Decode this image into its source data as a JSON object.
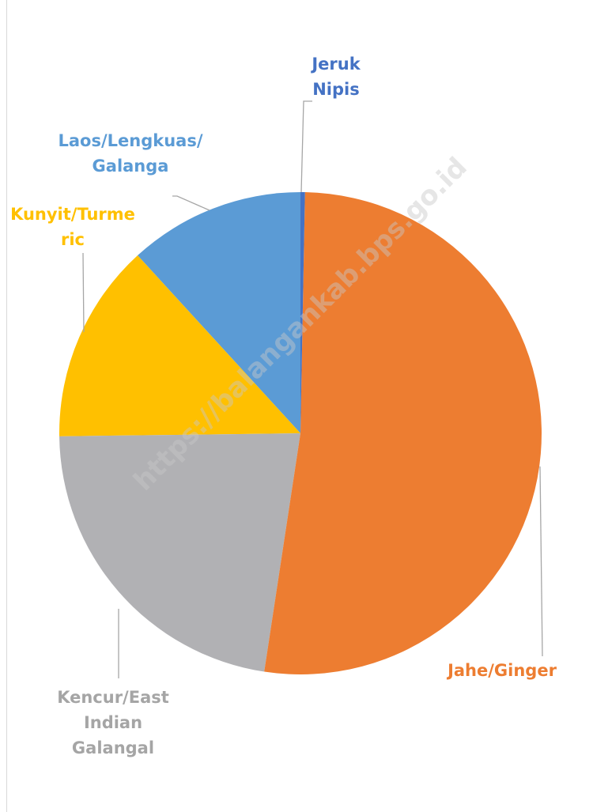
{
  "chart_data": {
    "type": "pie",
    "categories": [
      "Jeruk Nipis",
      "Jahe/Ginger",
      "Kencur/East Indian Galangal",
      "Kunyit/Turmeric",
      "Laos/Lengkuas/Galanga"
    ],
    "values": [
      0.3,
      52.1,
      22.4,
      13.4,
      11.8
    ],
    "colors": [
      "#4472c4",
      "#ed7d31",
      "#b1b1b4",
      "#ffc000",
      "#5b9bd5"
    ],
    "watermark": "https://balangankab.bps.go.id"
  }
}
